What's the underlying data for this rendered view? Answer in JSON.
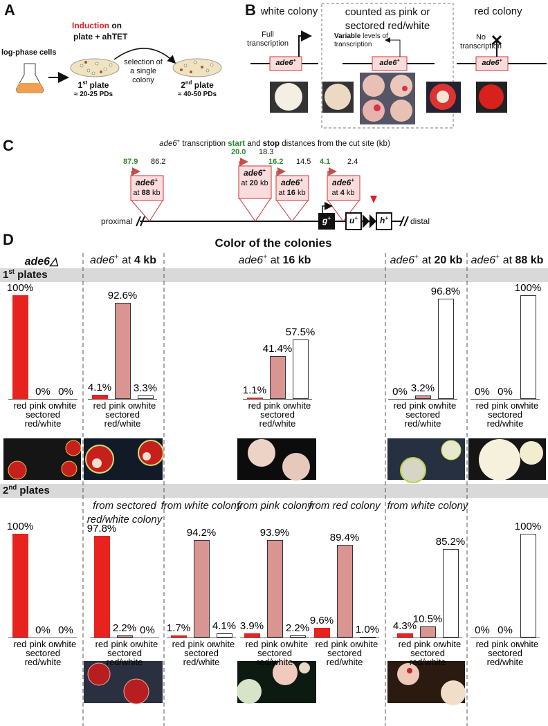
{
  "panel_a": {
    "label": "A",
    "cells": "log-phase cells",
    "induction": "Induction",
    "on": " on",
    "plate_ahtet": "plate + ahTET",
    "selection": "selection of a single colony",
    "plate1": {
      "num": "1",
      "sup": "st",
      "word": " plate",
      "pds": "≈ 20-25 PDs"
    },
    "plate2": {
      "num": "2",
      "sup": "nd",
      "word": " plate",
      "pds": "≈ 40-50 PDs"
    }
  },
  "panel_b": {
    "label": "B",
    "white": "white colony",
    "counted": "counted as pink or sectored red/white",
    "red": "red colony",
    "full": "Full transcription",
    "variable_bold": "Variable",
    "variable": " levels of transcription",
    "none": "No transcription",
    "gene": "ade6",
    "sup": "+"
  },
  "panel_c": {
    "label": "C",
    "title": {
      "gene": "ade6",
      "sup": "+",
      "t1": " transcription ",
      "start": "start",
      "t2": " and ",
      "stop": "stop",
      "t3": " distances from the cut site (kb)"
    },
    "inserts": [
      {
        "start": "87.9",
        "stop": "86.2",
        "at": "at ",
        "kb": "88",
        "unit": " kb"
      },
      {
        "start": "20.0",
        "stop": "18.3",
        "at": "at ",
        "kb": "20",
        "unit": " kb"
      },
      {
        "start": "16.2",
        "stop": "14.5",
        "at": "at ",
        "kb": "16",
        "unit": " kb"
      },
      {
        "start": "4.1",
        "stop": "2.4",
        "at": "at ",
        "kb": "4",
        "unit": " kb"
      }
    ],
    "gene": "ade6",
    "sup": "+",
    "proximal": "proximal",
    "distal": "distal",
    "markers": [
      {
        "name": "g",
        "sup": "+"
      },
      {
        "name": "u",
        "sup": "+"
      },
      {
        "name": "h",
        "sup": "+"
      }
    ]
  },
  "panel_d": {
    "label": "D",
    "title": "Color of the colonies",
    "ylim": [
      0,
      100
    ],
    "categories": [
      "red",
      "pink or sectored red/white",
      "white"
    ],
    "colors": [
      "#e8231f",
      "#d99592",
      "#ffffff"
    ],
    "columns": [
      {
        "name": "ade6△"
      },
      {
        "gene": "ade6",
        "sup": "+",
        "at": " at ",
        "kb": "4 kb"
      },
      {
        "gene": "ade6",
        "sup": "+",
        "at": " at ",
        "kb": "16 kb"
      },
      {
        "gene": "ade6",
        "sup": "+",
        "at": " at ",
        "kb": "20 kb"
      },
      {
        "gene": "ade6",
        "sup": "+",
        "at": " at ",
        "kb": "88 kb"
      }
    ],
    "rows": [
      {
        "num": "1",
        "sup": "st",
        "word": " plates",
        "charts": [
          {
            "values": [
              100,
              0,
              0
            ],
            "value_labels": [
              "100%",
              "0%",
              "0%"
            ]
          },
          {
            "values": [
              4.1,
              92.6,
              3.3
            ],
            "value_labels": [
              "4.1%",
              "92.6%",
              "3.3%"
            ]
          },
          {
            "values": [
              1.1,
              41.4,
              57.5
            ],
            "value_labels": [
              "1.1%",
              "41.4%",
              "57.5%"
            ]
          },
          {
            "values": [
              0,
              3.2,
              96.8
            ],
            "value_labels": [
              "0%",
              "3.2%",
              "96.8%"
            ]
          },
          {
            "values": [
              0,
              0,
              100
            ],
            "value_labels": [
              "0%",
              "0%",
              "100%"
            ]
          }
        ]
      },
      {
        "num": "2",
        "sup": "nd",
        "word": " plates",
        "charts": [
          {
            "values": [
              100,
              0,
              0
            ],
            "value_labels": [
              "100%",
              "0%",
              "0%"
            ]
          },
          {
            "subtitle": "from sectored red/white colony",
            "values": [
              97.8,
              2.2,
              0
            ],
            "value_labels": [
              "97.8%",
              "2.2%",
              "0%"
            ]
          },
          {
            "subtitle": "from white colony",
            "values": [
              1.7,
              94.2,
              4.1
            ],
            "value_labels": [
              "1.7%",
              "94.2%",
              "4.1%"
            ]
          },
          {
            "subtitle": "from pink colony",
            "values": [
              3.9,
              93.9,
              2.2
            ],
            "value_labels": [
              "3.9%",
              "93.9%",
              "2.2%"
            ]
          },
          {
            "subtitle": "from red colony",
            "values": [
              9.6,
              89.4,
              1.0
            ],
            "value_labels": [
              "9.6%",
              "89.4%",
              "1.0%"
            ]
          },
          {
            "subtitle": "from white colony",
            "values": [
              4.3,
              10.5,
              85.2
            ],
            "value_labels": [
              "4.3%",
              "10.5%",
              "85.2%"
            ]
          },
          {
            "values": [
              0,
              0,
              100
            ],
            "value_labels": [
              "0%",
              "0%",
              "100%"
            ]
          }
        ]
      }
    ]
  }
}
